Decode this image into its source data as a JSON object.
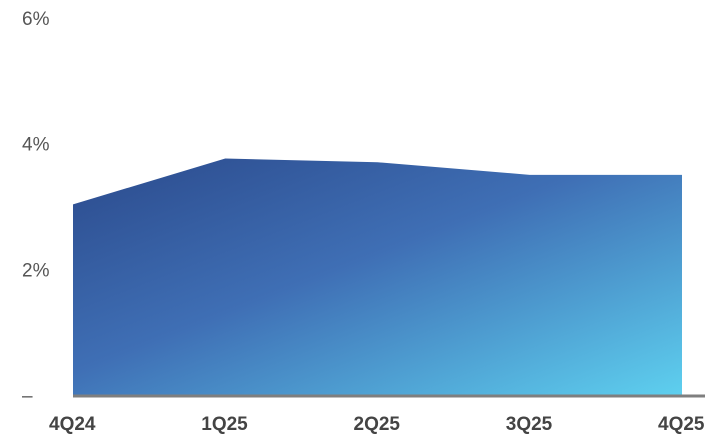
{
  "chart_data": {
    "type": "area",
    "categories": [
      "4Q24",
      "1Q25",
      "2Q25",
      "3Q25",
      "4Q25"
    ],
    "series": [
      {
        "values": [
          3.05,
          3.78,
          3.72,
          3.52,
          3.52
        ]
      }
    ],
    "ylim": [
      0,
      6
    ],
    "yticks": [
      {
        "value": 6,
        "label": "6%"
      },
      {
        "value": 4,
        "label": "4%"
      },
      {
        "value": 2,
        "label": "2%"
      },
      {
        "value": 0,
        "label": "–"
      }
    ],
    "grid": false,
    "colors": {
      "gradient_dark": "#2b4a8c",
      "gradient_mid": "#3f6fb5",
      "gradient_light": "#5ed0ef",
      "baseline": "#7f7f7f",
      "tick_text": "#555555",
      "category_text": "#444444"
    }
  }
}
